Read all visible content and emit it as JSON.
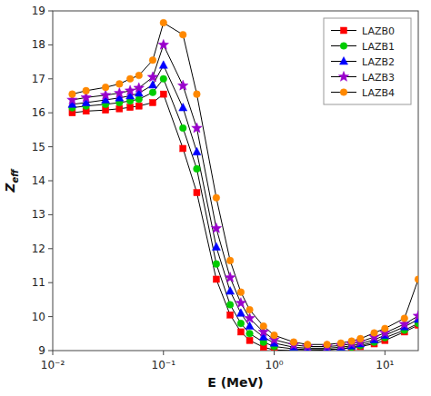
{
  "chart_data": {
    "type": "line",
    "xlabel": "E (MeV)",
    "ylabel": "Zeff",
    "log": "x",
    "grid": false,
    "legend": "upper right",
    "xlim": [
      0.01,
      20
    ],
    "ylim": [
      9,
      19
    ],
    "xticks": [
      {
        "value": 0.01,
        "label": "10⁻²"
      },
      {
        "value": 0.1,
        "label": "10⁻¹"
      },
      {
        "value": 1,
        "label": "10⁰"
      },
      {
        "value": 10,
        "label": "10¹"
      }
    ],
    "yticks": [
      9,
      10,
      11,
      12,
      13,
      14,
      15,
      16,
      17,
      18,
      19
    ],
    "series": [
      {
        "name": "LAZB0",
        "color": "#ff0000",
        "marker": "square",
        "x": [
          0.015,
          0.02,
          0.03,
          0.04,
          0.05,
          0.06,
          0.08,
          0.1,
          0.15,
          0.2,
          0.3,
          0.4,
          0.5,
          0.6,
          0.8,
          1.0,
          1.5,
          2.0,
          3.0,
          4.0,
          5.0,
          6.0,
          8.0,
          10.0,
          15.0,
          20.0
        ],
        "values": [
          16.0,
          16.05,
          16.08,
          16.12,
          16.16,
          16.2,
          16.3,
          16.55,
          14.95,
          13.65,
          11.1,
          10.05,
          9.55,
          9.3,
          9.1,
          9.02,
          9.0,
          9.0,
          9.02,
          9.05,
          9.08,
          9.12,
          9.2,
          9.3,
          9.55,
          9.75
        ]
      },
      {
        "name": "LAZB1",
        "color": "#00cc00",
        "marker": "circle",
        "x": [
          0.015,
          0.02,
          0.03,
          0.04,
          0.05,
          0.06,
          0.08,
          0.1,
          0.15,
          0.2,
          0.3,
          0.4,
          0.5,
          0.6,
          0.8,
          1.0,
          1.5,
          2.0,
          3.0,
          4.0,
          5.0,
          6.0,
          8.0,
          10.0,
          15.0,
          20.0
        ],
        "values": [
          16.15,
          16.2,
          16.25,
          16.3,
          16.35,
          16.4,
          16.6,
          17.0,
          15.55,
          14.35,
          11.55,
          10.35,
          9.8,
          9.5,
          9.25,
          9.12,
          9.05,
          9.03,
          9.03,
          9.05,
          9.1,
          9.15,
          9.25,
          9.38,
          9.6,
          9.8
        ]
      },
      {
        "name": "LAZB2",
        "color": "#0000ff",
        "marker": "triangle",
        "x": [
          0.015,
          0.02,
          0.03,
          0.04,
          0.05,
          0.06,
          0.08,
          0.1,
          0.15,
          0.2,
          0.3,
          0.4,
          0.5,
          0.6,
          0.8,
          1.0,
          1.5,
          2.0,
          3.0,
          4.0,
          5.0,
          6.0,
          8.0,
          10.0,
          15.0,
          20.0
        ],
        "values": [
          16.25,
          16.3,
          16.38,
          16.44,
          16.5,
          16.58,
          16.82,
          17.4,
          16.15,
          14.85,
          12.05,
          10.75,
          10.1,
          9.72,
          9.4,
          9.22,
          9.1,
          9.07,
          9.07,
          9.1,
          9.14,
          9.2,
          9.32,
          9.45,
          9.7,
          9.92
        ]
      },
      {
        "name": "LAZB3",
        "color": "#9900cc",
        "marker": "star",
        "x": [
          0.015,
          0.02,
          0.03,
          0.04,
          0.05,
          0.06,
          0.08,
          0.1,
          0.15,
          0.2,
          0.3,
          0.4,
          0.5,
          0.6,
          0.8,
          1.0,
          1.5,
          2.0,
          3.0,
          4.0,
          5.0,
          6.0,
          8.0,
          10.0,
          15.0,
          20.0
        ],
        "values": [
          16.38,
          16.45,
          16.52,
          16.58,
          16.65,
          16.73,
          17.05,
          18.0,
          16.8,
          15.55,
          12.6,
          11.15,
          10.4,
          9.95,
          9.55,
          9.32,
          9.17,
          9.12,
          9.12,
          9.15,
          9.2,
          9.26,
          9.4,
          9.52,
          9.78,
          10.02
        ]
      },
      {
        "name": "LAZB4",
        "color": "#ff8800",
        "marker": "circle",
        "x": [
          0.015,
          0.02,
          0.03,
          0.04,
          0.05,
          0.06,
          0.08,
          0.1,
          0.15,
          0.2,
          0.3,
          0.4,
          0.5,
          0.6,
          0.8,
          1.0,
          1.5,
          2.0,
          3.0,
          4.0,
          5.0,
          6.0,
          8.0,
          10.0,
          15.0,
          20.0
        ],
        "values": [
          16.55,
          16.65,
          16.75,
          16.85,
          17.0,
          17.1,
          17.55,
          18.65,
          18.3,
          16.55,
          13.5,
          11.65,
          10.72,
          10.2,
          9.72,
          9.45,
          9.25,
          9.18,
          9.18,
          9.22,
          9.28,
          9.35,
          9.52,
          9.65,
          9.95,
          11.1
        ]
      }
    ]
  }
}
